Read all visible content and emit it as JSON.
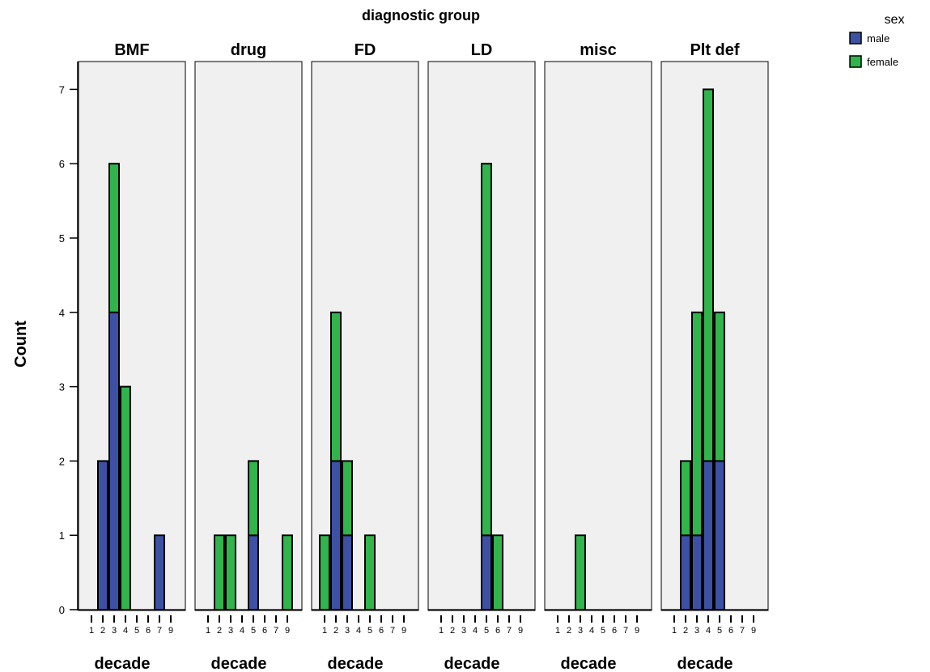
{
  "chart_data": {
    "type": "bar",
    "stacked": true,
    "title": "diagnostic group",
    "ylabel": "Count",
    "xlabel": "decade",
    "ylim": [
      0,
      7
    ],
    "yticks": [
      0,
      1,
      2,
      3,
      4,
      5,
      6,
      7
    ],
    "categories": [
      "1",
      "2",
      "3",
      "4",
      "5",
      "6",
      "7",
      "9"
    ],
    "legend": {
      "title": "sex",
      "placement": "top-right",
      "entries": [
        "male",
        "female"
      ]
    },
    "colors": {
      "male": "#3d51a4",
      "female": "#31b44b",
      "panel_bg": "#f0f0f0"
    },
    "panels": [
      {
        "name": "BMF",
        "series": [
          {
            "name": "male",
            "values": [
              0,
              2,
              4,
              0,
              0,
              0,
              1,
              0
            ]
          },
          {
            "name": "female",
            "values": [
              0,
              0,
              2,
              3,
              0,
              0,
              0,
              0
            ]
          }
        ]
      },
      {
        "name": "drug",
        "series": [
          {
            "name": "male",
            "values": [
              0,
              0,
              0,
              0,
              1,
              0,
              0,
              0
            ]
          },
          {
            "name": "female",
            "values": [
              0,
              1,
              1,
              0,
              1,
              0,
              0,
              1
            ]
          }
        ]
      },
      {
        "name": "FD",
        "series": [
          {
            "name": "male",
            "values": [
              0,
              2,
              1,
              0,
              0,
              0,
              0,
              0
            ]
          },
          {
            "name": "female",
            "values": [
              1,
              2,
              1,
              0,
              1,
              0,
              0,
              0
            ]
          }
        ]
      },
      {
        "name": "LD",
        "series": [
          {
            "name": "male",
            "values": [
              0,
              0,
              0,
              0,
              1,
              0,
              0,
              0
            ]
          },
          {
            "name": "female",
            "values": [
              0,
              0,
              0,
              0,
              5,
              1,
              0,
              0
            ]
          }
        ]
      },
      {
        "name": "misc",
        "series": [
          {
            "name": "male",
            "values": [
              0,
              0,
              0,
              0,
              0,
              0,
              0,
              0
            ]
          },
          {
            "name": "female",
            "values": [
              0,
              0,
              1,
              0,
              0,
              0,
              0,
              0
            ]
          }
        ]
      },
      {
        "name": "Plt def",
        "series": [
          {
            "name": "male",
            "values": [
              0,
              1,
              1,
              2,
              2,
              0,
              0,
              0
            ]
          },
          {
            "name": "female",
            "values": [
              0,
              1,
              3,
              5,
              2,
              0,
              0,
              0
            ]
          }
        ]
      }
    ]
  }
}
